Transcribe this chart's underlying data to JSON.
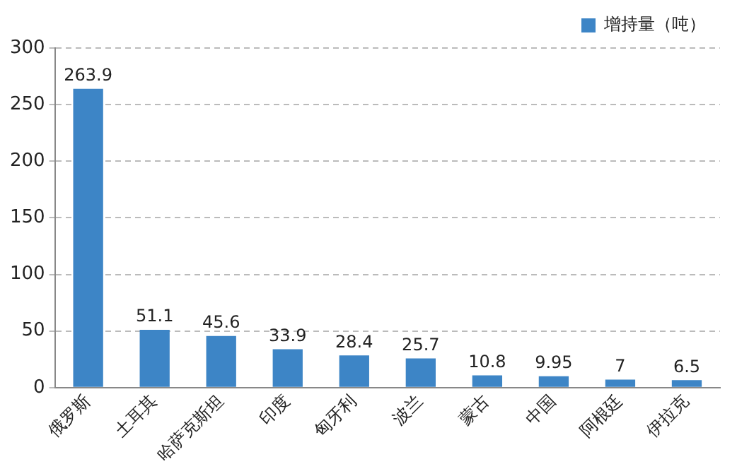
{
  "chart_data": {
    "type": "bar",
    "categories": [
      "俄罗斯",
      "土耳其",
      "哈萨克斯坦",
      "印度",
      "匈牙利",
      "波兰",
      "蒙古",
      "中国",
      "阿根廷",
      "伊拉克"
    ],
    "series": [
      {
        "name": "增持量（吨）",
        "color": "#3d85c6",
        "values": [
          263.9,
          51.1,
          45.6,
          33.9,
          28.4,
          25.7,
          10.8,
          9.95,
          7,
          6.5
        ]
      }
    ],
    "ylim": [
      0,
      300
    ],
    "yticks": [
      0,
      50,
      100,
      150,
      200,
      250,
      300
    ],
    "grid": "y",
    "legend": "top right",
    "data_labels": true
  }
}
